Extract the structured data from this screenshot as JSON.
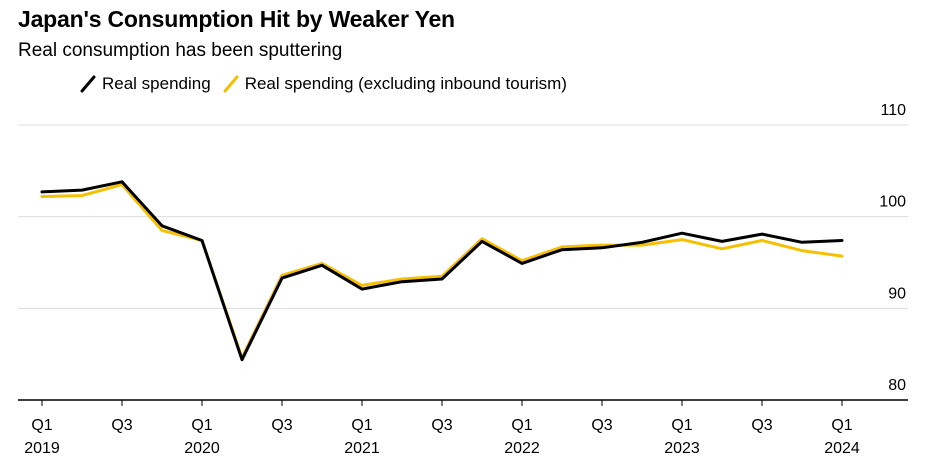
{
  "header": {
    "title": "Japan's Consumption Hit by Weaker Yen",
    "subtitle": "Real consumption has been sputtering"
  },
  "colors": {
    "series_1": "#000000",
    "series_2": "#f5c000",
    "grid": "#dddddd",
    "axis": "#000000"
  },
  "chart_data": {
    "type": "line",
    "title": "Japan's Consumption Hit by Weaker Yen",
    "subtitle": "Real consumption has been sputtering",
    "xlabel": "",
    "ylabel": "",
    "ylim": [
      80,
      110
    ],
    "yticks": [
      "110",
      "100",
      "90",
      "80"
    ],
    "grid": true,
    "legend_position": "top-left",
    "x": [
      "2019 Q1",
      "2019 Q2",
      "2019 Q3",
      "2019 Q4",
      "2020 Q1",
      "2020 Q2",
      "2020 Q3",
      "2020 Q4",
      "2021 Q1",
      "2021 Q2",
      "2021 Q3",
      "2021 Q4",
      "2022 Q1",
      "2022 Q2",
      "2022 Q3",
      "2022 Q4",
      "2023 Q1",
      "2023 Q2",
      "2023 Q3",
      "2023 Q4",
      "2024 Q1"
    ],
    "xtick_labels": [
      {
        "quarter": "Q1",
        "year": "2019"
      },
      {
        "quarter": "Q3",
        "year": ""
      },
      {
        "quarter": "Q1",
        "year": "2020"
      },
      {
        "quarter": "Q3",
        "year": ""
      },
      {
        "quarter": "Q1",
        "year": "2021"
      },
      {
        "quarter": "Q3",
        "year": ""
      },
      {
        "quarter": "Q1",
        "year": "2022"
      },
      {
        "quarter": "Q3",
        "year": ""
      },
      {
        "quarter": "Q1",
        "year": "2023"
      },
      {
        "quarter": "Q3",
        "year": ""
      },
      {
        "quarter": "Q1",
        "year": "2024"
      }
    ],
    "series": [
      {
        "name": "Real spending",
        "color": "#000000",
        "values": [
          102.7,
          102.9,
          103.8,
          99.0,
          97.4,
          84.4,
          93.3,
          94.7,
          92.1,
          92.9,
          93.2,
          97.3,
          94.9,
          96.4,
          96.6,
          97.2,
          98.2,
          97.3,
          98.1,
          97.2,
          97.4
        ]
      },
      {
        "name": "Real spending (excluding inbound tourism)",
        "color": "#f5c000",
        "values": [
          102.2,
          102.3,
          103.5,
          98.5,
          97.4,
          84.6,
          93.6,
          94.9,
          92.5,
          93.2,
          93.5,
          97.6,
          95.2,
          96.7,
          96.9,
          96.9,
          97.5,
          96.5,
          97.4,
          96.3,
          95.7
        ]
      }
    ]
  }
}
